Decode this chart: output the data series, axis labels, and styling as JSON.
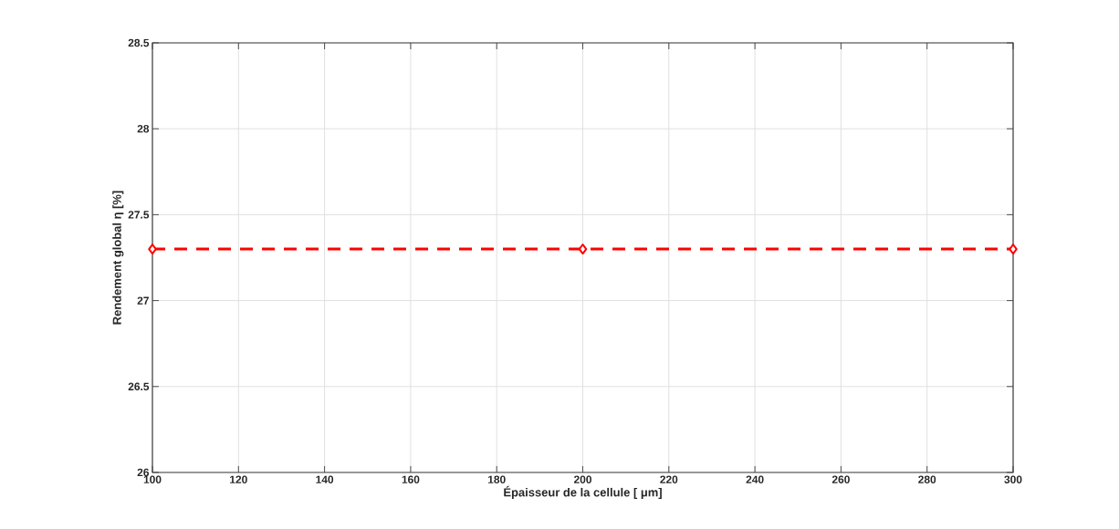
{
  "chart_data": {
    "type": "line",
    "xlabel": "Épaisseur de la cellule [ μm]",
    "ylabel": "Rendement global  η [%]",
    "x": [
      100,
      200,
      300
    ],
    "series": [
      {
        "color": "#ff0000",
        "values": [
          27.3,
          27.3,
          27.3
        ]
      }
    ],
    "xlim": [
      100,
      300
    ],
    "xticks": [
      100,
      120,
      140,
      160,
      180,
      200,
      220,
      240,
      260,
      280,
      300
    ],
    "ylim": [
      26,
      28.5
    ],
    "yticks": [
      26,
      26.5,
      27,
      27.5,
      28,
      28.5
    ],
    "grid": true,
    "marker": "diamond",
    "line_style": "dashed"
  }
}
